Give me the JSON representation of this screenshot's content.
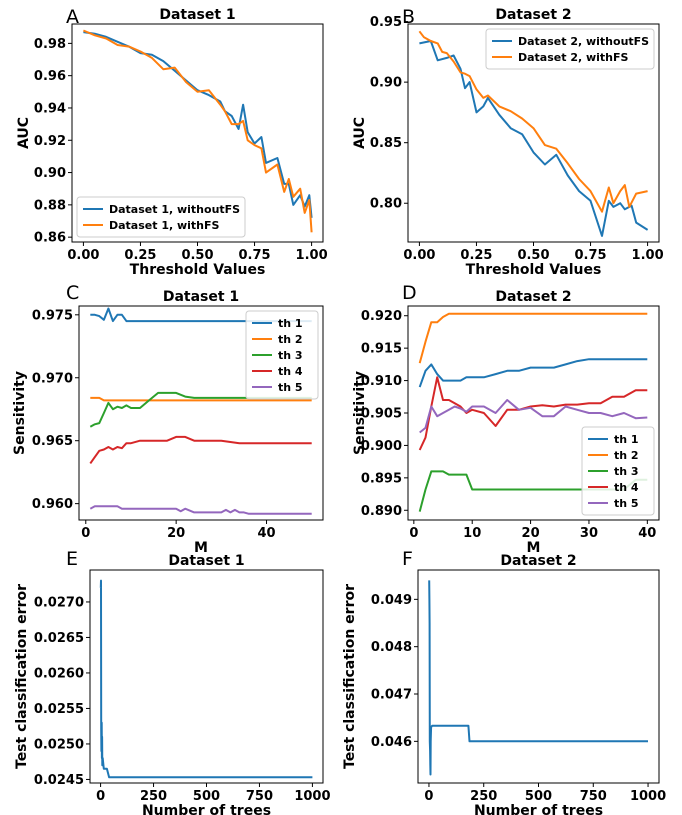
{
  "figure": {
    "panels": [
      {
        "id": "A",
        "letter": "A",
        "title": "Dataset 1"
      },
      {
        "id": "B",
        "letter": "B",
        "title": "Dataset 2"
      },
      {
        "id": "C",
        "letter": "C",
        "title": "Dataset 1"
      },
      {
        "id": "D",
        "letter": "D",
        "title": "Dataset 2"
      },
      {
        "id": "E",
        "letter": "E",
        "title": "Dataset 1"
      },
      {
        "id": "F",
        "letter": "F",
        "title": "Dataset 2"
      }
    ]
  },
  "chart_data": [
    {
      "panel": "A",
      "type": "line",
      "title": "Dataset 1",
      "xlabel": "Threshold Values",
      "ylabel": "AUC",
      "xlim": [
        -0.05,
        1.05
      ],
      "ylim": [
        0.857,
        0.992
      ],
      "xticks": [
        0.0,
        0.25,
        0.5,
        0.75,
        1.0
      ],
      "xtick_labels": [
        "0.00",
        "0.25",
        "0.50",
        "0.75",
        "1.00"
      ],
      "yticks": [
        0.86,
        0.88,
        0.9,
        0.92,
        0.94,
        0.96,
        0.98
      ],
      "ytick_labels": [
        "0.86",
        "0.88",
        "0.90",
        "0.92",
        "0.94",
        "0.96",
        "0.98"
      ],
      "grid": false,
      "legend_position": "lower-left",
      "colors": [
        "#1f77b4",
        "#ff7f0e"
      ],
      "series": [
        {
          "name": "Dataset 1, withoutFS",
          "x": [
            0,
            0.05,
            0.1,
            0.15,
            0.2,
            0.25,
            0.3,
            0.35,
            0.4,
            0.45,
            0.5,
            0.55,
            0.6,
            0.62,
            0.65,
            0.68,
            0.7,
            0.72,
            0.75,
            0.78,
            0.8,
            0.85,
            0.88,
            0.9,
            0.92,
            0.95,
            0.97,
            0.99,
            1.0
          ],
          "y": [
            0.987,
            0.986,
            0.984,
            0.981,
            0.978,
            0.974,
            0.973,
            0.969,
            0.963,
            0.957,
            0.951,
            0.948,
            0.944,
            0.938,
            0.935,
            0.927,
            0.942,
            0.925,
            0.918,
            0.922,
            0.906,
            0.909,
            0.893,
            0.893,
            0.88,
            0.886,
            0.879,
            0.886,
            0.872
          ]
        },
        {
          "name": "Dataset 1, withFS",
          "x": [
            0,
            0.05,
            0.1,
            0.15,
            0.2,
            0.25,
            0.3,
            0.35,
            0.4,
            0.45,
            0.5,
            0.55,
            0.6,
            0.62,
            0.65,
            0.68,
            0.7,
            0.72,
            0.75,
            0.78,
            0.8,
            0.85,
            0.88,
            0.9,
            0.92,
            0.95,
            0.97,
            0.99,
            1.0
          ],
          "y": [
            0.988,
            0.985,
            0.983,
            0.979,
            0.978,
            0.975,
            0.971,
            0.964,
            0.965,
            0.956,
            0.95,
            0.951,
            0.942,
            0.938,
            0.93,
            0.93,
            0.932,
            0.92,
            0.917,
            0.915,
            0.9,
            0.905,
            0.888,
            0.896,
            0.885,
            0.89,
            0.875,
            0.883,
            0.863
          ]
        }
      ]
    },
    {
      "panel": "B",
      "type": "line",
      "title": "Dataset 2",
      "xlabel": "Threshold Values",
      "ylabel": "AUC",
      "xlim": [
        -0.05,
        1.05
      ],
      "ylim": [
        0.768,
        0.948
      ],
      "xticks": [
        0.0,
        0.25,
        0.5,
        0.75,
        1.0
      ],
      "xtick_labels": [
        "0.00",
        "0.25",
        "0.50",
        "0.75",
        "1.00"
      ],
      "yticks": [
        0.8,
        0.85,
        0.9,
        0.95
      ],
      "ytick_labels": [
        "0.80",
        "0.85",
        "0.90",
        "0.95"
      ],
      "grid": false,
      "legend_position": "top-right",
      "colors": [
        "#1f77b4",
        "#ff7f0e"
      ],
      "series": [
        {
          "name": "Dataset 2, withoutFS",
          "x": [
            0,
            0.05,
            0.08,
            0.12,
            0.15,
            0.18,
            0.2,
            0.22,
            0.25,
            0.28,
            0.3,
            0.35,
            0.4,
            0.45,
            0.5,
            0.55,
            0.6,
            0.65,
            0.7,
            0.75,
            0.8,
            0.83,
            0.85,
            0.88,
            0.9,
            0.93,
            0.95,
            1.0
          ],
          "y": [
            0.932,
            0.934,
            0.918,
            0.92,
            0.922,
            0.911,
            0.895,
            0.9,
            0.875,
            0.88,
            0.887,
            0.873,
            0.862,
            0.857,
            0.842,
            0.832,
            0.84,
            0.823,
            0.81,
            0.802,
            0.773,
            0.802,
            0.797,
            0.8,
            0.795,
            0.798,
            0.784,
            0.778
          ]
        },
        {
          "name": "Dataset 2, withFS",
          "x": [
            0,
            0.02,
            0.05,
            0.08,
            0.1,
            0.12,
            0.15,
            0.18,
            0.2,
            0.22,
            0.25,
            0.28,
            0.3,
            0.35,
            0.4,
            0.45,
            0.5,
            0.55,
            0.6,
            0.65,
            0.7,
            0.75,
            0.8,
            0.83,
            0.85,
            0.88,
            0.9,
            0.92,
            0.95,
            1.0
          ],
          "y": [
            0.942,
            0.937,
            0.934,
            0.932,
            0.925,
            0.924,
            0.917,
            0.908,
            0.907,
            0.905,
            0.894,
            0.887,
            0.889,
            0.88,
            0.876,
            0.87,
            0.862,
            0.848,
            0.845,
            0.833,
            0.82,
            0.81,
            0.793,
            0.813,
            0.8,
            0.81,
            0.815,
            0.797,
            0.808,
            0.81
          ]
        }
      ]
    },
    {
      "panel": "C",
      "type": "line",
      "title": "Dataset 1",
      "xlabel": "M",
      "ylabel": "Sensitivity",
      "xlim": [
        -1.5,
        52.5
      ],
      "ylim": [
        0.9587,
        0.9757
      ],
      "xticks": [
        0,
        20,
        40
      ],
      "xtick_labels": [
        "0",
        "20",
        "40"
      ],
      "yticks": [
        0.96,
        0.965,
        0.97,
        0.975
      ],
      "ytick_labels": [
        "0.960",
        "0.965",
        "0.970",
        "0.975"
      ],
      "grid": false,
      "legend_position": "top-right",
      "colors": [
        "#1f77b4",
        "#ff7f0e",
        "#2ca02c",
        "#d62728",
        "#9467bd"
      ],
      "series": [
        {
          "name": "th 1",
          "x": [
            1,
            2,
            3,
            4,
            5,
            6,
            7,
            8,
            9,
            10,
            50
          ],
          "y": [
            0.975,
            0.975,
            0.9749,
            0.9746,
            0.9755,
            0.9745,
            0.975,
            0.975,
            0.9745,
            0.9745,
            0.9745
          ]
        },
        {
          "name": "th 2",
          "x": [
            1,
            2,
            3,
            4,
            50
          ],
          "y": [
            0.9684,
            0.9684,
            0.9684,
            0.9682,
            0.9682
          ]
        },
        {
          "name": "th 3",
          "x": [
            1,
            2,
            3,
            4,
            5,
            6,
            7,
            8,
            9,
            10,
            12,
            14,
            16,
            18,
            20,
            22,
            24,
            30,
            50
          ],
          "y": [
            0.9661,
            0.9663,
            0.9664,
            0.9672,
            0.968,
            0.9675,
            0.9677,
            0.9676,
            0.9678,
            0.9676,
            0.9676,
            0.9682,
            0.9688,
            0.9688,
            0.9688,
            0.9685,
            0.9684,
            0.9684,
            0.9684
          ]
        },
        {
          "name": "th 4",
          "x": [
            1,
            2,
            3,
            4,
            5,
            6,
            7,
            8,
            9,
            10,
            12,
            14,
            16,
            18,
            20,
            22,
            24,
            30,
            32,
            34,
            50
          ],
          "y": [
            0.9632,
            0.9637,
            0.9642,
            0.9643,
            0.9645,
            0.9643,
            0.9645,
            0.9644,
            0.9648,
            0.9648,
            0.965,
            0.965,
            0.965,
            0.965,
            0.9653,
            0.9653,
            0.965,
            0.965,
            0.9649,
            0.9648,
            0.9648
          ]
        },
        {
          "name": "th 5",
          "x": [
            1,
            2,
            3,
            4,
            5,
            6,
            7,
            8,
            9,
            10,
            15,
            20,
            21,
            22,
            24,
            26,
            28,
            30,
            31,
            32,
            33,
            34,
            35,
            36,
            50
          ],
          "y": [
            0.9596,
            0.9598,
            0.9598,
            0.9598,
            0.9598,
            0.9598,
            0.9598,
            0.9596,
            0.9596,
            0.9596,
            0.9596,
            0.9596,
            0.9594,
            0.9596,
            0.9593,
            0.9593,
            0.9593,
            0.9593,
            0.9595,
            0.9593,
            0.9595,
            0.9593,
            0.9593,
            0.9592,
            0.9592
          ]
        }
      ]
    },
    {
      "panel": "D",
      "type": "line",
      "title": "Dataset 2",
      "xlabel": "M",
      "ylabel": "Sensitivity",
      "xlim": [
        -1.0,
        42.0
      ],
      "ylim": [
        0.8885,
        0.9215
      ],
      "xticks": [
        0,
        10,
        20,
        30,
        40
      ],
      "xtick_labels": [
        "0",
        "10",
        "20",
        "30",
        "40"
      ],
      "yticks": [
        0.89,
        0.895,
        0.9,
        0.905,
        0.91,
        0.915,
        0.92
      ],
      "ytick_labels": [
        "0.890",
        "0.895",
        "0.900",
        "0.905",
        "0.910",
        "0.915",
        "0.920"
      ],
      "grid": false,
      "legend_position": "lower-right",
      "colors": [
        "#1f77b4",
        "#ff7f0e",
        "#2ca02c",
        "#d62728",
        "#9467bd"
      ],
      "series": [
        {
          "name": "th 1",
          "x": [
            1,
            2,
            3,
            4,
            5,
            6,
            7,
            8,
            9,
            10,
            12,
            14,
            16,
            18,
            20,
            22,
            24,
            26,
            28,
            30,
            40
          ],
          "y": [
            0.909,
            0.9115,
            0.9125,
            0.911,
            0.91,
            0.91,
            0.91,
            0.91,
            0.9105,
            0.9105,
            0.9105,
            0.911,
            0.9115,
            0.9115,
            0.912,
            0.912,
            0.912,
            0.9125,
            0.913,
            0.9133,
            0.9133
          ]
        },
        {
          "name": "th 2",
          "x": [
            1,
            2,
            3,
            4,
            5,
            6,
            40
          ],
          "y": [
            0.9127,
            0.916,
            0.919,
            0.919,
            0.9198,
            0.9203,
            0.9203
          ]
        },
        {
          "name": "th 3",
          "x": [
            1,
            2,
            3,
            4,
            5,
            6,
            7,
            8,
            9,
            10,
            12,
            14,
            34,
            36,
            38,
            40
          ],
          "y": [
            0.8898,
            0.8932,
            0.896,
            0.896,
            0.896,
            0.8955,
            0.8955,
            0.8955,
            0.8955,
            0.8932,
            0.8932,
            0.8932,
            0.8932,
            0.8932,
            0.8947,
            0.8947
          ]
        },
        {
          "name": "th 4",
          "x": [
            1,
            2,
            3,
            4,
            5,
            6,
            7,
            8,
            9,
            10,
            12,
            14,
            16,
            18,
            20,
            22,
            24,
            26,
            28,
            30,
            32,
            34,
            36,
            38,
            40
          ],
          "y": [
            0.8993,
            0.9012,
            0.906,
            0.9105,
            0.907,
            0.907,
            0.9065,
            0.906,
            0.905,
            0.9055,
            0.905,
            0.903,
            0.9055,
            0.9055,
            0.906,
            0.9062,
            0.906,
            0.9063,
            0.9063,
            0.9065,
            0.9065,
            0.9075,
            0.9075,
            0.9085,
            0.9085
          ]
        },
        {
          "name": "th 5",
          "x": [
            1,
            2,
            3,
            4,
            5,
            6,
            7,
            8,
            9,
            10,
            12,
            14,
            16,
            18,
            20,
            22,
            24,
            26,
            28,
            30,
            32,
            34,
            36,
            38,
            40
          ],
          "y": [
            0.902,
            0.9027,
            0.906,
            0.9045,
            0.905,
            0.9055,
            0.906,
            0.9057,
            0.9052,
            0.906,
            0.906,
            0.905,
            0.907,
            0.9055,
            0.9058,
            0.9045,
            0.9045,
            0.906,
            0.9055,
            0.905,
            0.905,
            0.9045,
            0.905,
            0.9042,
            0.9043
          ]
        }
      ]
    },
    {
      "panel": "E",
      "type": "line",
      "title": "Dataset 1",
      "xlabel": "Number of trees",
      "ylabel": "Test classification error",
      "xlim": [
        -50,
        1050
      ],
      "ylim": [
        0.02445,
        0.02745
      ],
      "xticks": [
        0,
        250,
        500,
        750,
        1000
      ],
      "xtick_labels": [
        "0",
        "250",
        "500",
        "750",
        "1000"
      ],
      "yticks": [
        0.0245,
        0.025,
        0.0255,
        0.026,
        0.0265,
        0.027
      ],
      "ytick_labels": [
        "0.0245",
        "0.0250",
        "0.0255",
        "0.0260",
        "0.0265",
        "0.0270"
      ],
      "grid": false,
      "colors": [
        "#1f77b4"
      ],
      "series": [
        {
          "x": [
            1,
            2,
            3,
            4,
            5,
            6,
            7,
            8,
            10,
            15,
            20,
            30,
            40,
            1000
          ],
          "y": [
            0.0272,
            0.0273,
            0.0252,
            0.0249,
            0.0253,
            0.0248,
            0.0251,
            0.0247,
            0.0248,
            0.02465,
            0.02465,
            0.02465,
            0.02453,
            0.02453
          ]
        }
      ]
    },
    {
      "panel": "F",
      "type": "line",
      "title": "Dataset 2",
      "xlabel": "Number of trees",
      "ylabel": "Test classification error",
      "xlim": [
        -50,
        1050
      ],
      "ylim": [
        0.04512,
        0.04962
      ],
      "xticks": [
        0,
        250,
        500,
        750,
        1000
      ],
      "xtick_labels": [
        "0",
        "250",
        "500",
        "750",
        "1000"
      ],
      "yticks": [
        0.046,
        0.047,
        0.048,
        0.049
      ],
      "ytick_labels": [
        "0.046",
        "0.047",
        "0.048",
        "0.049"
      ],
      "grid": false,
      "colors": [
        "#1f77b4"
      ],
      "series": [
        {
          "x": [
            1,
            2,
            3,
            4,
            5,
            6,
            7,
            8,
            10,
            15,
            20,
            180,
            185,
            1000
          ],
          "y": [
            0.0494,
            0.049,
            0.0485,
            0.046,
            0.0458,
            0.0455,
            0.0453,
            0.046,
            0.0463,
            0.04633,
            0.04633,
            0.04633,
            0.046,
            0.046
          ]
        }
      ]
    }
  ]
}
